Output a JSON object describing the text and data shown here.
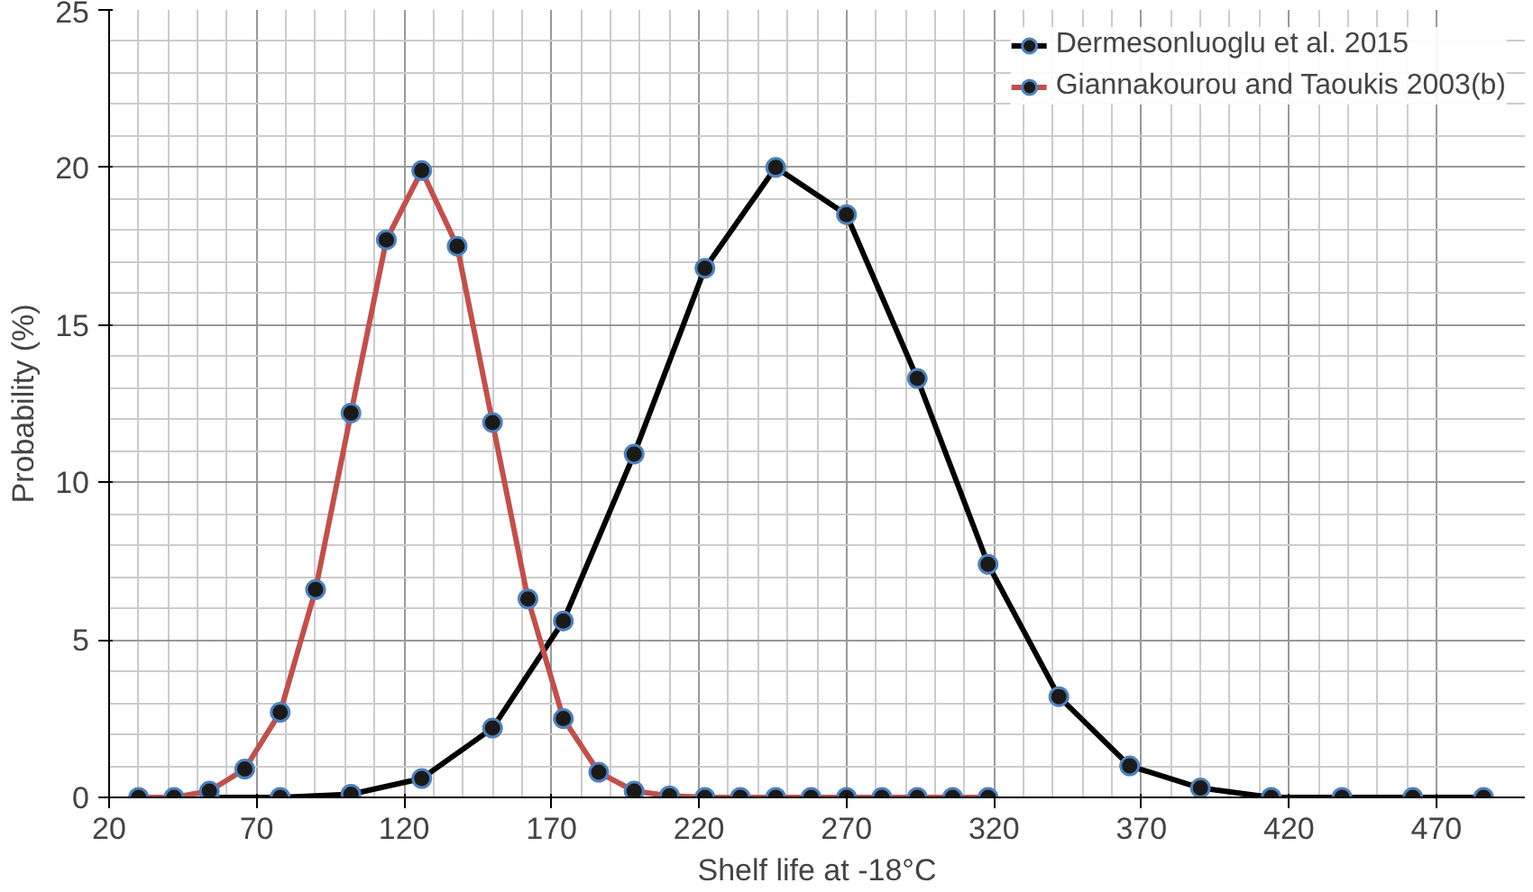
{
  "chart_data": {
    "type": "line",
    "xlabel": "Shelf life at -18°C",
    "ylabel": "Probability (%)",
    "xlim": [
      20,
      500
    ],
    "xticks": [
      20,
      70,
      120,
      170,
      220,
      270,
      320,
      370,
      420,
      470
    ],
    "ylim": [
      0,
      25
    ],
    "yticks": [
      0,
      5,
      10,
      15,
      20,
      25
    ],
    "grid": true,
    "legend": "top right",
    "marker": "circle",
    "line_style": "solid",
    "series": [
      {
        "name": "Dermesonluoglu et al. 2015",
        "color": "#000000",
        "x": [
          54,
          78,
          102,
          126,
          150,
          174,
          198,
          222,
          246,
          270,
          294,
          318,
          342,
          366,
          390,
          414,
          438,
          462,
          486
        ],
        "values": [
          0,
          0,
          0.1,
          0.6,
          2.2,
          5.6,
          10.9,
          16.8,
          20,
          18.5,
          13.3,
          7.4,
          3.2,
          1.0,
          0.3,
          0,
          0,
          0,
          0
        ]
      },
      {
        "name": "Giannakourou and Taoukis 2003(b)",
        "color": "#c0504d",
        "x": [
          30,
          42,
          54,
          66,
          78,
          90,
          102,
          114,
          126,
          138,
          150,
          162,
          174,
          186,
          198,
          210,
          222,
          234,
          246,
          258,
          270,
          282,
          294,
          306,
          318
        ],
        "values": [
          0,
          0,
          0.2,
          0.9,
          2.7,
          6.6,
          12.2,
          17.7,
          19.9,
          17.5,
          11.9,
          6.3,
          2.5,
          0.8,
          0.2,
          0.05,
          0,
          0,
          0,
          0,
          0,
          0,
          0,
          0,
          0
        ]
      }
    ]
  }
}
